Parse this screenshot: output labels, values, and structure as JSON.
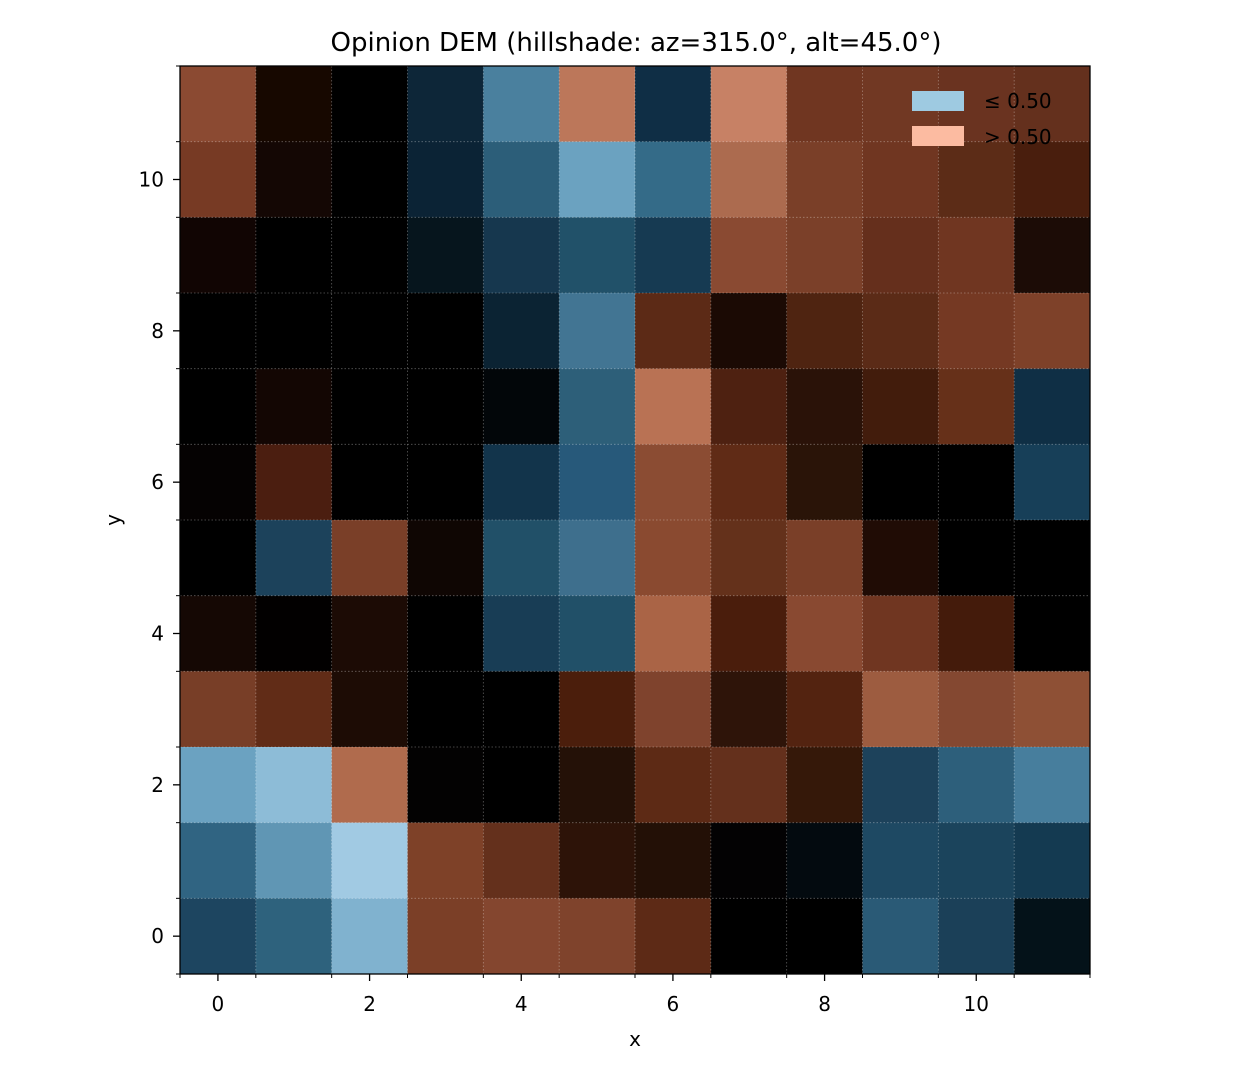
{
  "chart_data": {
    "type": "heatmap",
    "title": "Opinion DEM (hillshade: az=315.0°, alt=45.0°)",
    "xlabel": "x",
    "ylabel": "y",
    "xlim": [
      -0.5,
      11.5
    ],
    "ylim": [
      -0.5,
      11.5
    ],
    "xticks": [
      0,
      2,
      4,
      6,
      8,
      10
    ],
    "yticks": [
      0,
      2,
      4,
      6,
      8,
      10
    ],
    "xtick_labels": [
      "0",
      "2",
      "4",
      "6",
      "8",
      "10"
    ],
    "ytick_labels": [
      "0",
      "2",
      "4",
      "6",
      "8",
      "10"
    ],
    "grid": true,
    "legend_position": "top-right",
    "legend": [
      {
        "label": "≤ 0.50",
        "color": "#9ecae1"
      },
      {
        "label": "> 0.50",
        "color": "#fcbba1"
      }
    ],
    "rows_top_to_bottom_y": [
      11,
      10,
      9,
      8,
      7,
      6,
      5,
      4,
      3,
      2,
      1,
      0
    ],
    "cell_colors": [
      [
        "#8b4a32",
        "#170800",
        "#000000",
        "#0d2638",
        "#4a809e",
        "#bc775a",
        "#0f2e45",
        "#c78165",
        "#703621",
        "#713823",
        "#6a3320",
        "#64301d"
      ],
      [
        "#773a24",
        "#140704",
        "#000000",
        "#0b2335",
        "#2c5e79",
        "#6ba2c0",
        "#346b88",
        "#ac6b4f",
        "#7a3f28",
        "#703621",
        "#5c2c17",
        "#491e0d"
      ],
      [
        "#110503",
        "#000000",
        "#000000",
        "#06151d",
        "#16374e",
        "#215169",
        "#163a52",
        "#8a4a32",
        "#7b4029",
        "#652f1c",
        "#703621",
        "#1c0c06"
      ],
      [
        "#000000",
        "#000000",
        "#000000",
        "#000000",
        "#0b2333",
        "#427593",
        "#5c2a16",
        "#1b0a04",
        "#4f2411",
        "#5b2b17",
        "#753923",
        "#7e4129"
      ],
      [
        "#000000",
        "#130603",
        "#000000",
        "#000000",
        "#020609",
        "#2d5f79",
        "#b97254",
        "#4e2111",
        "#2a1208",
        "#421c0c",
        "#663019",
        "#0f2f45"
      ],
      [
        "#050202",
        "#4b1e10",
        "#000000",
        "#000000",
        "#12344b",
        "#27597a",
        "#8b4c33",
        "#602b16",
        "#2a1408",
        "#000000",
        "#000000",
        "#173f58"
      ],
      [
        "#000000",
        "#1c425b",
        "#7a3f28",
        "#0f0603",
        "#215068",
        "#3e6f8d",
        "#8a4a30",
        "#64311b",
        "#7a3f28",
        "#200c05",
        "#000000",
        "#000000"
      ],
      [
        "#150804",
        "#020000",
        "#1c0b05",
        "#000000",
        "#183d55",
        "#215068",
        "#aa6446",
        "#4a1d0c",
        "#894931",
        "#703621",
        "#441b0b",
        "#000000"
      ],
      [
        "#783e27",
        "#612c17",
        "#1d0c05",
        "#000000",
        "#000000",
        "#4b1e0c",
        "#7f432d",
        "#2e1409",
        "#532310",
        "#9d5c40",
        "#844831",
        "#8e5035"
      ],
      [
        "#6ba2c1",
        "#8dbcd7",
        "#b06b4d",
        "#030202",
        "#000000",
        "#241107",
        "#5d2a15",
        "#64301c",
        "#351809",
        "#1d425b",
        "#2d5f7b",
        "#477e9d"
      ],
      [
        "#306482",
        "#6096b4",
        "#a1cae3",
        "#7e4128",
        "#64301c",
        "#2d1308",
        "#231006",
        "#030203",
        "#030a0f",
        "#1e4963",
        "#1b445c",
        "#143a51"
      ],
      [
        "#1d4560",
        "#2e627d",
        "#80b2cf",
        "#7b3f27",
        "#84462f",
        "#7f432c",
        "#5d2a16",
        "#000000",
        "#000000",
        "#2a5a76",
        "#1b4058",
        "#041219"
      ]
    ]
  }
}
